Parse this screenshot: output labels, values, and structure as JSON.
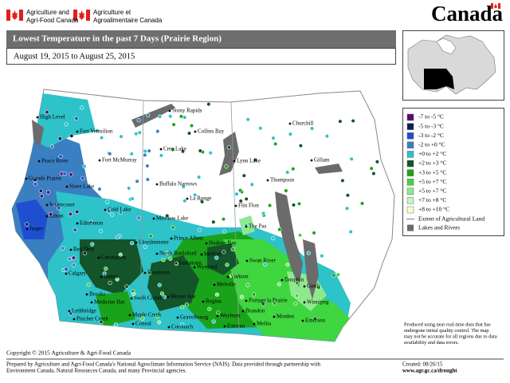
{
  "header": {
    "agency_en": [
      "Agriculture and",
      "Agri-Food Canada"
    ],
    "agency_fr": [
      "Agriculture et",
      "Agroalimentaire Canada"
    ],
    "wordmark": "Canada"
  },
  "map": {
    "title": "Lowest Temperature in the past 7 Days (Prairie Region)",
    "date_range": "August 19, 2015 to August 25, 2015",
    "cities": [
      "High Level",
      "Fort Vermilion",
      "Peace River",
      "Fort McMurray",
      "Grande Prairie",
      "Slave Lake",
      "Whitecourt",
      "Edson",
      "Jasper",
      "Cold Lake",
      "Edmonton",
      "Red Deer",
      "Coronation",
      "Calgary",
      "Hanna",
      "Brooks",
      "Medicine Hat",
      "Lethbridge",
      "Pincher Creek",
      "Stony Rapids",
      "Collins Bay",
      "Cree Lake",
      "Buffalo Narrows",
      "La Ronge",
      "Meadow Lake",
      "Lloydminster",
      "Prince Albert",
      "North Battleford",
      "Saskatoon",
      "Rosetown",
      "Swift Current",
      "Moose Jaw",
      "Regina",
      "Maple Creek",
      "Consul",
      "Coronach",
      "Gravelbourg",
      "Weyburn",
      "Estevan",
      "Melita",
      "Churchill",
      "Lynn Lake",
      "Gillam",
      "Thompson",
      "Flin Flon",
      "The Pas",
      "Hudson Bay",
      "Wynyard",
      "Melfort",
      "Yorkton",
      "Melville",
      "Swan River",
      "Dauphin",
      "Portage la Prairie",
      "Brandon",
      "Gimli",
      "Winnipeg",
      "Morden",
      "Emerson"
    ]
  },
  "legend": {
    "items": [
      {
        "label": "-7 to -5 °C",
        "color": "#5a0a78"
      },
      {
        "label": "-5 to -3 °C",
        "color": "#0c1f5c"
      },
      {
        "label": "-3 to -2 °C",
        "color": "#1f4fd1"
      },
      {
        "label": "-2 to +0 °C",
        "color": "#3a7fc1"
      },
      {
        "label": "+0 to +2 °C",
        "color": "#2ec2c9"
      },
      {
        "label": "+2 to +3 °C",
        "color": "#14542a"
      },
      {
        "label": "+3 to +5 °C",
        "color": "#1aa31a"
      },
      {
        "label": "+5 to +7 °C",
        "color": "#3fd63f"
      },
      {
        "label": "+5 to +7 °C",
        "color": "#8ee88e"
      },
      {
        "label": "+7 to +8 °C",
        "color": "#c4f5c4"
      },
      {
        "label": "+8 to +10 °C",
        "color": "#fafad2"
      }
    ],
    "extent": "Extent of Agricultural Land",
    "lakes": {
      "label": "Lakes and Rivers",
      "color": "#6b6b6b"
    }
  },
  "note": [
    "Produced using near real-time data that has",
    "undergone initial quality control.  The map",
    "may not be accurate for all regions due to data",
    "availability and data errors."
  ],
  "footer": {
    "copyright": "Copyright © 2015 Agriculture & Agri-Food Canada",
    "prepared": [
      "Prepared by Agriculture and Agri-Food Canada's National Agroclimate Information Service (NAIS).  Data provided through partnership with",
      "Environment Canada, Natural Resources Canada, and many Provincial agencies."
    ],
    "created": "Created: 08/26/15",
    "url": "www.agr.gc.ca/drought"
  }
}
